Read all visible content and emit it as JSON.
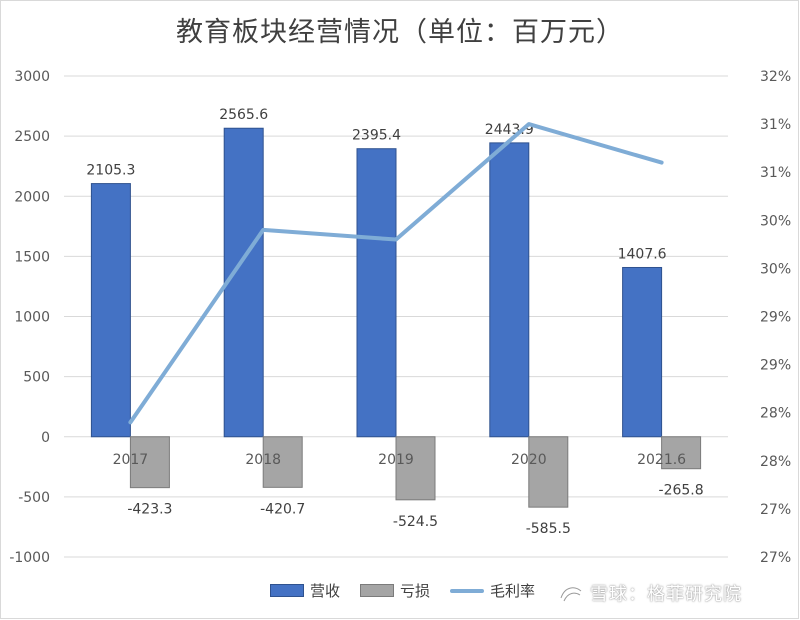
{
  "chart_data": {
    "type": "bar",
    "title": "教育板块经营情况（单位：百万元）",
    "categories": [
      "2017",
      "2018",
      "2019",
      "2020",
      "2021.6"
    ],
    "series": [
      {
        "name": "营收",
        "type": "bar",
        "axis": "left",
        "color": "#4472c4",
        "values": [
          2105.3,
          2565.6,
          2395.4,
          2443.9,
          1407.6
        ],
        "labels": [
          "2105.3",
          "2565.6",
          "2395.4",
          "2443.9",
          "1407.6"
        ]
      },
      {
        "name": "亏损",
        "type": "bar",
        "axis": "left",
        "color": "#a5a5a5",
        "values": [
          -423.3,
          -420.7,
          -524.5,
          -585.5,
          -265.8
        ],
        "labels": [
          "-423.3",
          "-420.7",
          "-524.5",
          "-585.5",
          "-265.8"
        ]
      },
      {
        "name": "毛利率",
        "type": "line",
        "axis": "right",
        "color": "#7facd6",
        "values": [
          27.9,
          29.9,
          29.8,
          31.0,
          30.6
        ]
      }
    ],
    "y_left": {
      "min": -1000,
      "max": 3000,
      "ticks": [
        {
          "value": 3000,
          "label": "3000"
        },
        {
          "value": 2500,
          "label": "2500"
        },
        {
          "value": 2000,
          "label": "2000"
        },
        {
          "value": 1500,
          "label": "1500"
        },
        {
          "value": 1000,
          "label": "1000"
        },
        {
          "value": 500,
          "label": "500"
        },
        {
          "value": 0,
          "label": "0"
        },
        {
          "value": -500,
          "label": "-500"
        },
        {
          "value": -1000,
          "label": "-1000"
        }
      ]
    },
    "y_right": {
      "min": 26.5,
      "max": 31.5,
      "ticks": [
        {
          "value": 31.5,
          "label": "32%"
        },
        {
          "value": 31.0,
          "label": "31%"
        },
        {
          "value": 30.5,
          "label": "31%"
        },
        {
          "value": 30.0,
          "label": "30%"
        },
        {
          "value": 29.5,
          "label": "30%"
        },
        {
          "value": 29.0,
          "label": "29%"
        },
        {
          "value": 28.5,
          "label": "29%"
        },
        {
          "value": 28.0,
          "label": "28%"
        },
        {
          "value": 27.5,
          "label": "28%"
        },
        {
          "value": 27.0,
          "label": "27%"
        },
        {
          "value": 26.5,
          "label": "27%"
        }
      ]
    },
    "grid": true,
    "legend_position": "bottom"
  },
  "watermark": "雪球：格菲研究院"
}
